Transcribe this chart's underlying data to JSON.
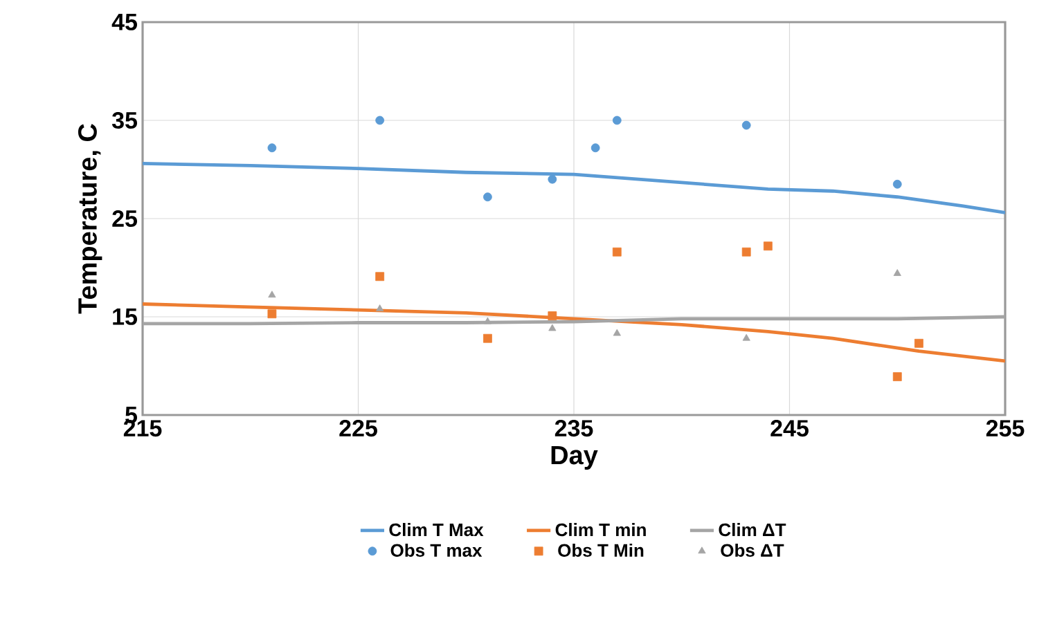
{
  "chart_data": {
    "type": "line",
    "xlabel": "Day",
    "ylabel": "Temperature, C",
    "xlim": [
      215,
      255
    ],
    "ylim": [
      5,
      45
    ],
    "xticks": [
      215,
      225,
      235,
      245,
      255
    ],
    "yticks": [
      5,
      15,
      25,
      35,
      45
    ],
    "grid": true,
    "legend": "bottom",
    "series": [
      {
        "name": "Clim T Max",
        "line_style": "solid",
        "marker": "none",
        "color": "#5b9bd5",
        "x": [
          215,
          220,
          225,
          230,
          235,
          238,
          241,
          244,
          247,
          250,
          253,
          255
        ],
        "values": [
          30.6,
          30.4,
          30.1,
          29.7,
          29.5,
          29.0,
          28.5,
          28.0,
          27.8,
          27.2,
          26.3,
          25.6
        ]
      },
      {
        "name": "Clim T min",
        "line_style": "solid",
        "marker": "none",
        "color": "#ed7d31",
        "x": [
          215,
          220,
          225,
          230,
          235,
          240,
          244,
          247,
          251,
          255
        ],
        "values": [
          16.3,
          16.0,
          15.7,
          15.4,
          14.8,
          14.2,
          13.5,
          12.8,
          11.5,
          10.5
        ]
      },
      {
        "name": "Clim ΔT",
        "line_style": "solid",
        "marker": "none",
        "color": "#a5a5a5",
        "x": [
          215,
          220,
          225,
          230,
          235,
          240,
          245,
          250,
          255
        ],
        "values": [
          14.3,
          14.3,
          14.4,
          14.4,
          14.5,
          14.8,
          14.8,
          14.8,
          15.0
        ]
      },
      {
        "name": "Obs T max",
        "type": "scatter",
        "marker": "circle",
        "color": "#5b9bd5",
        "x": [
          221,
          226,
          231,
          234,
          236,
          237,
          243,
          250
        ],
        "values": [
          32.2,
          35.0,
          27.2,
          29.0,
          32.2,
          35.0,
          34.5,
          28.5
        ]
      },
      {
        "name": "Obs T Min",
        "type": "scatter",
        "marker": "square",
        "color": "#ed7d31",
        "x": [
          221,
          226,
          231,
          234,
          237,
          243,
          244,
          250,
          251
        ],
        "values": [
          15.3,
          19.1,
          12.8,
          15.1,
          21.6,
          21.6,
          22.2,
          8.9,
          12.3
        ]
      },
      {
        "name": "Obs ΔT",
        "type": "scatter",
        "marker": "triangle",
        "color": "#a5a5a5",
        "x": [
          221,
          226,
          231,
          234,
          237,
          243,
          250
        ],
        "values": [
          17.2,
          15.8,
          14.5,
          13.8,
          13.3,
          12.8,
          19.4
        ]
      }
    ]
  }
}
